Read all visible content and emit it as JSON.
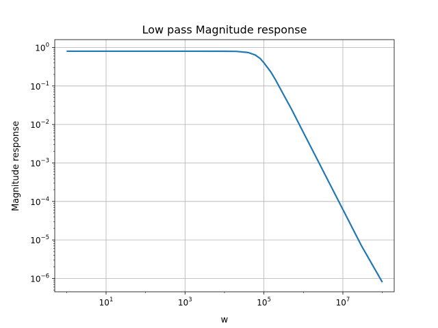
{
  "chart_data": {
    "type": "line",
    "title": "Low pass Magnitude response",
    "xlabel": "w",
    "ylabel": "Magnitude response",
    "xscale": "log",
    "yscale": "log",
    "xlim": [
      0.5,
      200000000
    ],
    "ylim": [
      4.5e-07,
      1.6
    ],
    "grid": true,
    "x_ticks": [
      {
        "base": "10",
        "exp": "1",
        "value": 10
      },
      {
        "base": "10",
        "exp": "3",
        "value": 1000
      },
      {
        "base": "10",
        "exp": "5",
        "value": 100000
      },
      {
        "base": "10",
        "exp": "7",
        "value": 10000000
      }
    ],
    "y_ticks": [
      {
        "base": "10",
        "exp": "0",
        "value": 1
      },
      {
        "base": "10",
        "exp": "−1",
        "value": 0.1
      },
      {
        "base": "10",
        "exp": "−2",
        "value": 0.01
      },
      {
        "base": "10",
        "exp": "−3",
        "value": 0.001
      },
      {
        "base": "10",
        "exp": "−4",
        "value": 0.0001
      },
      {
        "base": "10",
        "exp": "−5",
        "value": 1e-05
      },
      {
        "base": "10",
        "exp": "−6",
        "value": 1e-06
      }
    ],
    "series": [
      {
        "color": "#1f77b4",
        "x": [
          1,
          10,
          100,
          1000,
          10000,
          20000,
          40000,
          60000,
          80000,
          100000,
          150000,
          200000,
          300000,
          500000,
          1000000,
          3000000,
          10000000,
          30000000,
          100000000
        ],
        "y": [
          0.8,
          0.8,
          0.8,
          0.8,
          0.799,
          0.792,
          0.74,
          0.64,
          0.52,
          0.4,
          0.23,
          0.14,
          0.065,
          0.025,
          0.0062,
          0.00069,
          6.2e-05,
          6.9e-06,
          8e-07
        ]
      }
    ]
  }
}
